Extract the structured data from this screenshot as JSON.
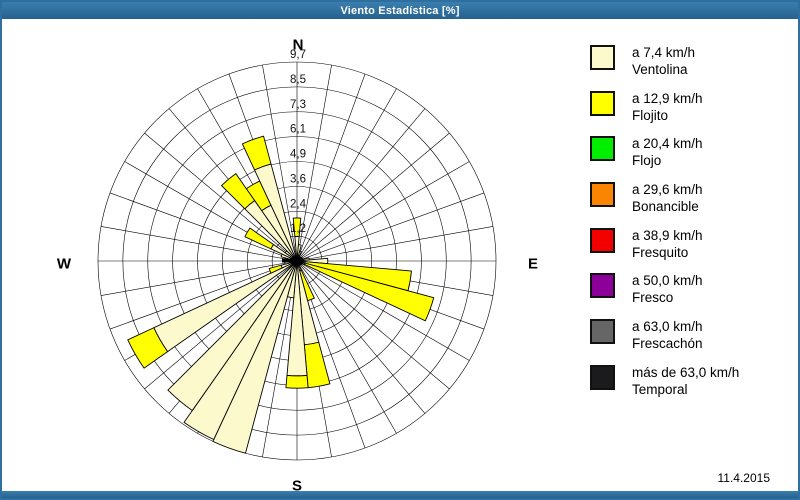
{
  "window": {
    "title": "Viento Estadística [%]",
    "date": "11.4.2015",
    "frame_color": "#2e6f9f"
  },
  "compass": {
    "north": "N",
    "east": "E",
    "south": "S",
    "west": "W"
  },
  "legend": {
    "items": [
      {
        "speed": "a 7,4 km/h",
        "name": "Ventolina",
        "color": "#fcf9cd"
      },
      {
        "speed": "a 12,9 km/h",
        "name": "Flojito",
        "color": "#ffff00"
      },
      {
        "speed": "a 20,4 km/h",
        "name": "Flojo",
        "color": "#00ee00"
      },
      {
        "speed": "a 29,6 km/h",
        "name": "Bonancible",
        "color": "#f98500"
      },
      {
        "speed": "a 38,9 km/h",
        "name": "Fresquito",
        "color": "#f20000"
      },
      {
        "speed": "a 50,0 km/h",
        "name": "Fresco",
        "color": "#8c0099"
      },
      {
        "speed": "a 63,0 km/h",
        "name": "Frescachón",
        "color": "#666666"
      },
      {
        "speed": "más de 63,0 km/h",
        "name": "Temporal",
        "color": "#1b1b1d"
      }
    ]
  },
  "chart_data": {
    "type": "windrose-stacked-bar",
    "units": "%",
    "title": "Viento Estadística [%]",
    "max": 9.7,
    "sector_deg": 10,
    "grid": true,
    "ring_values": [
      1.2125,
      2.425,
      3.6375,
      4.85,
      6.0625,
      7.275,
      8.4875,
      9.7
    ],
    "ring_labels": [
      "1,2",
      "2,4",
      "3,6",
      "4,9",
      "6,1",
      "7,3",
      "8,5",
      "9,7"
    ],
    "colors": {
      "ventolina": "#fcf9cd",
      "flojito": "#ffff00"
    },
    "series_note": "v = Ventolina (% up to 7,4 km/h), f = additional Flojito (% up to 12,9 km/h); bar direction in compass degrees",
    "bars": [
      {
        "d": 0,
        "v": 1.2,
        "f": 0.9
      },
      {
        "d": 10,
        "v": 0.8,
        "f": 0
      },
      {
        "d": 20,
        "v": 0.5,
        "f": 0
      },
      {
        "d": 80,
        "v": 0.6,
        "f": 0
      },
      {
        "d": 90,
        "v": 1.5,
        "f": 0
      },
      {
        "d": 100,
        "v": 0.4,
        "f": 5.2
      },
      {
        "d": 110,
        "v": 0.4,
        "f": 6.5
      },
      {
        "d": 160,
        "v": 0.5,
        "f": 1.5
      },
      {
        "d": 170,
        "v": 4.1,
        "f": 2.1
      },
      {
        "d": 180,
        "v": 5.6,
        "f": 0.6
      },
      {
        "d": 190,
        "v": 1.8,
        "f": 0
      },
      {
        "d": 200,
        "v": 9.7,
        "f": 0
      },
      {
        "d": 210,
        "v": 9.6,
        "f": 0
      },
      {
        "d": 220,
        "v": 8.9,
        "f": 0
      },
      {
        "d": 240,
        "v": 7.7,
        "f": 1.4
      },
      {
        "d": 250,
        "v": 0.8,
        "f": 0.6
      },
      {
        "d": 260,
        "v": 0.6,
        "f": 0
      },
      {
        "d": 280,
        "v": 0.6,
        "f": 0
      },
      {
        "d": 290,
        "v": 0.8,
        "f": 0
      },
      {
        "d": 300,
        "v": 1.4,
        "f": 1.4
      },
      {
        "d": 310,
        "v": 0.7,
        "f": 0
      },
      {
        "d": 320,
        "v": 3.6,
        "f": 1.6
      },
      {
        "d": 330,
        "v": 3.0,
        "f": 1.3
      },
      {
        "d": 340,
        "v": 4.9,
        "f": 1.4
      }
    ]
  }
}
